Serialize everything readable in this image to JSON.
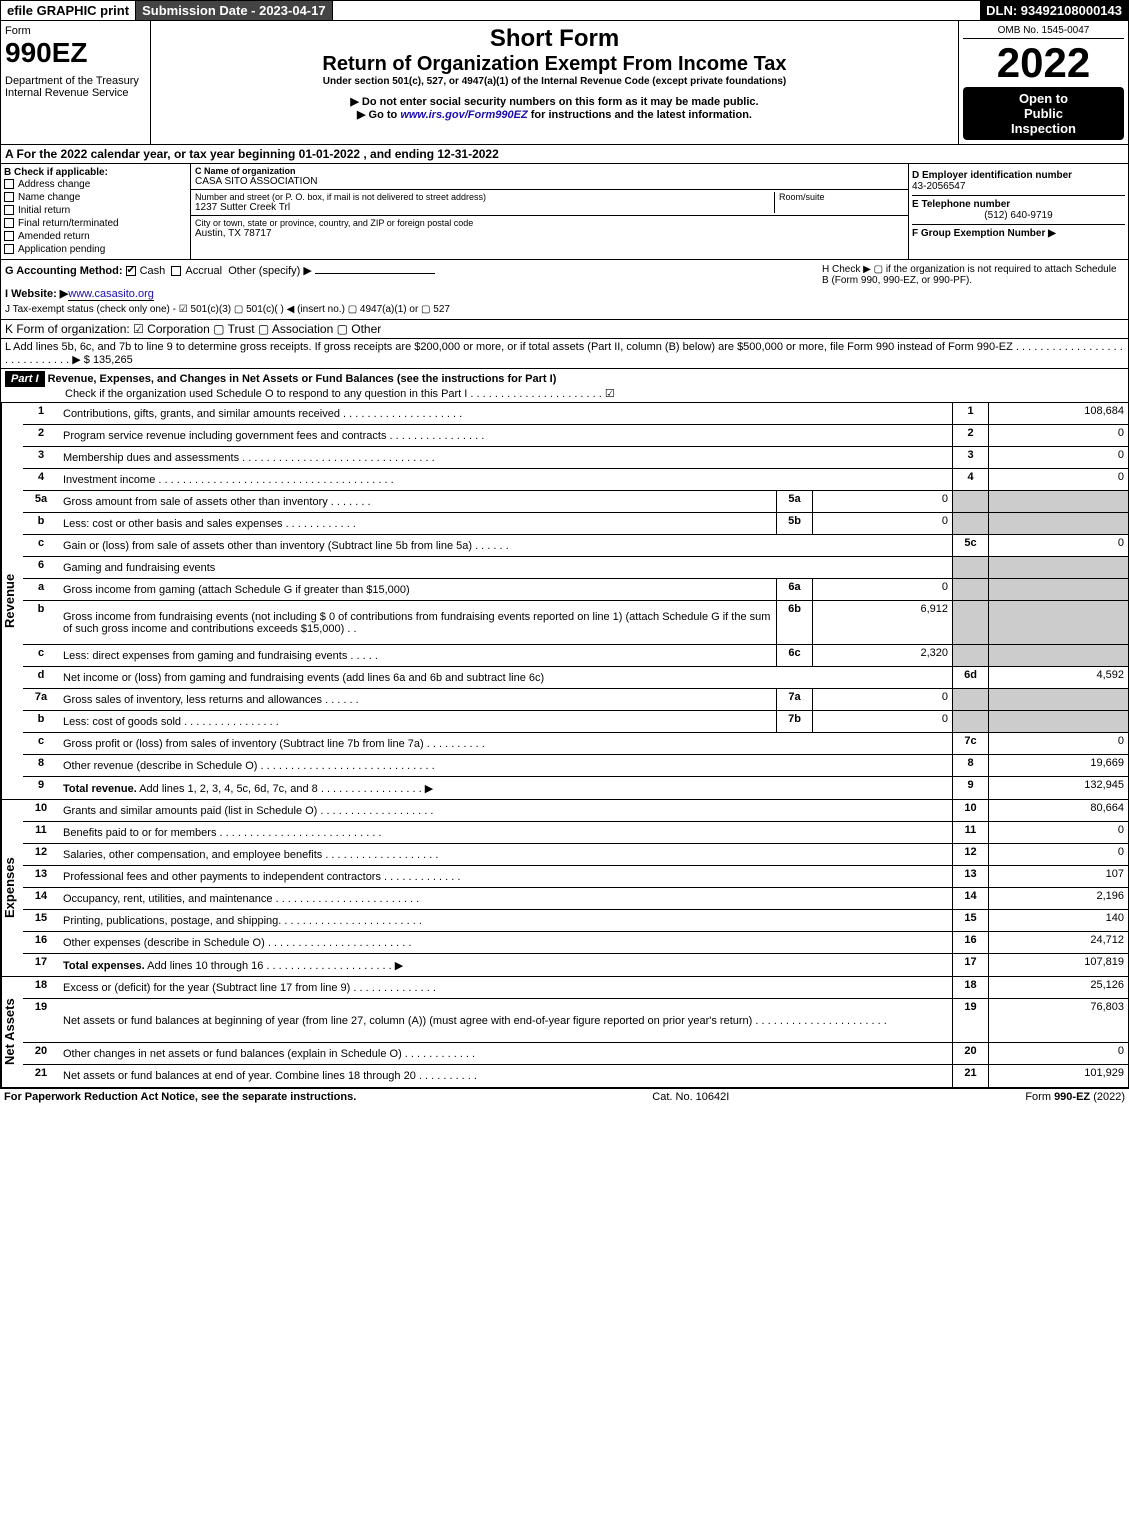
{
  "topbar": {
    "efile": "efile GRAPHIC print",
    "submission": "Submission Date - 2023-04-17",
    "dln": "DLN: 93492108000143"
  },
  "header": {
    "form_label": "Form",
    "form_no": "990EZ",
    "dept": "Department of the Treasury",
    "irs": "Internal Revenue Service",
    "short_form": "Short Form",
    "title": "Return of Organization Exempt From Income Tax",
    "under": "Under section 501(c), 527, or 4947(a)(1) of the Internal Revenue Code (except private foundations)",
    "ssn_note": "▶ Do not enter social security numbers on this form as it may be made public.",
    "goto": "▶ Go to www.irs.gov/Form990EZ for instructions and the latest information.",
    "omb": "OMB No. 1545-0047",
    "year": "2022",
    "open1": "Open to",
    "open2": "Public",
    "open3": "Inspection"
  },
  "sectionA": "A  For the 2022 calendar year, or tax year beginning 01-01-2022 , and ending 12-31-2022",
  "sectionB": {
    "label": "B  Check if applicable:",
    "items": [
      "Address change",
      "Name change",
      "Initial return",
      "Final return/terminated",
      "Amended return",
      "Application pending"
    ]
  },
  "sectionC": {
    "name_lbl": "C Name of organization",
    "name": "CASA SITO ASSOCIATION",
    "addr_lbl": "Number and street (or P. O. box, if mail is not delivered to street address)",
    "addr": "1237 Sutter Creek Trl",
    "room_lbl": "Room/suite",
    "city_lbl": "City or town, state or province, country, and ZIP or foreign postal code",
    "city": "Austin, TX  78717"
  },
  "sectionD": {
    "ein_lbl": "D Employer identification number",
    "ein": "43-2056547",
    "tel_lbl": "E Telephone number",
    "tel": "(512) 640-9719",
    "grp_lbl": "F Group Exemption Number  ▶"
  },
  "sectionG": {
    "label": "G Accounting Method:",
    "cash": "Cash",
    "accrual": "Accrual",
    "other": "Other (specify) ▶"
  },
  "sectionH": "H  Check ▶  ▢  if the organization is not required to attach Schedule B (Form 990, 990-EZ, or 990-PF).",
  "sectionI": {
    "label": "I Website: ▶",
    "url": "www.casasito.org"
  },
  "sectionJ": "J Tax-exempt status (check only one) - ☑ 501(c)(3)  ▢ 501(c)(  ) ◀ (insert no.)  ▢ 4947(a)(1) or  ▢ 527",
  "sectionK": "K Form of organization:  ☑ Corporation  ▢ Trust  ▢ Association  ▢ Other",
  "sectionL": {
    "text": "L Add lines 5b, 6c, and 7b to line 9 to determine gross receipts. If gross receipts are $200,000 or more, or if total assets (Part II, column (B) below) are $500,000 or more, file Form 990 instead of Form 990-EZ  . . . . . . . . . . . . . . . . . . . . . . . . . . . . . ▶",
    "amount": "$ 135,265"
  },
  "part1": {
    "label": "Part I",
    "title": "Revenue, Expenses, and Changes in Net Assets or Fund Balances (see the instructions for Part I)",
    "check_o": "Check if the organization used Schedule O to respond to any question in this Part I . . . . . . . . . . . . . . . . . . . . . . ☑"
  },
  "vert_labels": {
    "revenue": "Revenue",
    "expenses": "Expenses",
    "net": "Net Assets"
  },
  "revenue": [
    {
      "n": "1",
      "desc": "Contributions, gifts, grants, and similar amounts received . . . . . . . . . . . . . . . . . . . .",
      "ref": "1",
      "val": "108,684"
    },
    {
      "n": "2",
      "desc": "Program service revenue including government fees and contracts . . . . . . . . . . . . . . . .",
      "ref": "2",
      "val": "0"
    },
    {
      "n": "3",
      "desc": "Membership dues and assessments . . . . . . . . . . . . . . . . . . . . . . . . . . . . . . . .",
      "ref": "3",
      "val": "0"
    },
    {
      "n": "4",
      "desc": "Investment income . . . . . . . . . . . . . . . . . . . . . . . . . . . . . . . . . . . . . . .",
      "ref": "4",
      "val": "0"
    },
    {
      "n": "5a",
      "desc": "Gross amount from sale of assets other than inventory . . . . . . .",
      "sub": "5a",
      "subval": "0",
      "shade": true
    },
    {
      "n": "b",
      "desc": "Less: cost or other basis and sales expenses . . . . . . . . . . . .",
      "sub": "5b",
      "subval": "0",
      "shade": true
    },
    {
      "n": "c",
      "desc": "Gain or (loss) from sale of assets other than inventory (Subtract line 5b from line 5a) . . . . . .",
      "ref": "5c",
      "val": "0"
    },
    {
      "n": "6",
      "desc": "Gaming and fundraising events",
      "shade": true,
      "noval": true
    },
    {
      "n": "a",
      "desc": "Gross income from gaming (attach Schedule G if greater than $15,000)",
      "sub": "6a",
      "subval": "0",
      "shade": true
    },
    {
      "n": "b",
      "desc": "Gross income from fundraising events (not including $ 0        of contributions from fundraising events reported on line 1) (attach Schedule G if the sum of such gross income and contributions exceeds $15,000)  . .",
      "sub": "6b",
      "subval": "6,912",
      "shade": true,
      "tall": true
    },
    {
      "n": "c",
      "desc": "Less: direct expenses from gaming and fundraising events  . . . . .",
      "sub": "6c",
      "subval": "2,320",
      "shade": true
    },
    {
      "n": "d",
      "desc": "Net income or (loss) from gaming and fundraising events (add lines 6a and 6b and subtract line 6c)",
      "ref": "6d",
      "val": "4,592"
    },
    {
      "n": "7a",
      "desc": "Gross sales of inventory, less returns and allowances . . . . . .",
      "sub": "7a",
      "subval": "0",
      "shade": true
    },
    {
      "n": "b",
      "desc": "Less: cost of goods sold       . . . . . . . . . . . . . . . .",
      "sub": "7b",
      "subval": "0",
      "shade": true
    },
    {
      "n": "c",
      "desc": "Gross profit or (loss) from sales of inventory (Subtract line 7b from line 7a) . . . . . . . . . .",
      "ref": "7c",
      "val": "0"
    },
    {
      "n": "8",
      "desc": "Other revenue (describe in Schedule O) . . . . . . . . . . . . . . . . . . . . . . . . . . . . .",
      "ref": "8",
      "val": "19,669"
    },
    {
      "n": "9",
      "desc": "Total revenue. Add lines 1, 2, 3, 4, 5c, 6d, 7c, and 8  . . . . . . . . . . . . . . . . .  ▶",
      "ref": "9",
      "val": "132,945",
      "bold": true
    }
  ],
  "expenses": [
    {
      "n": "10",
      "desc": "Grants and similar amounts paid (list in Schedule O) . . . . . . . . . . . . . . . . . . .",
      "ref": "10",
      "val": "80,664"
    },
    {
      "n": "11",
      "desc": "Benefits paid to or for members      . . . . . . . . . . . . . . . . . . . . . . . . . . .",
      "ref": "11",
      "val": "0"
    },
    {
      "n": "12",
      "desc": "Salaries, other compensation, and employee benefits . . . . . . . . . . . . . . . . . . .",
      "ref": "12",
      "val": "0"
    },
    {
      "n": "13",
      "desc": "Professional fees and other payments to independent contractors . . . . . . . . . . . . .",
      "ref": "13",
      "val": "107"
    },
    {
      "n": "14",
      "desc": "Occupancy, rent, utilities, and maintenance . . . . . . . . . . . . . . . . . . . . . . . .",
      "ref": "14",
      "val": "2,196"
    },
    {
      "n": "15",
      "desc": "Printing, publications, postage, and shipping. . . . . . . . . . . . . . . . . . . . . . . .",
      "ref": "15",
      "val": "140"
    },
    {
      "n": "16",
      "desc": "Other expenses (describe in Schedule O)    . . . . . . . . . . . . . . . . . . . . . . . .",
      "ref": "16",
      "val": "24,712"
    },
    {
      "n": "17",
      "desc": "Total expenses. Add lines 10 through 16    . . . . . . . . . . . . . . . . . . . . .  ▶",
      "ref": "17",
      "val": "107,819",
      "bold": true
    }
  ],
  "netassets": [
    {
      "n": "18",
      "desc": "Excess or (deficit) for the year (Subtract line 17 from line 9)       . . . . . . . . . . . . . .",
      "ref": "18",
      "val": "25,126"
    },
    {
      "n": "19",
      "desc": "Net assets or fund balances at beginning of year (from line 27, column (A)) (must agree with end-of-year figure reported on prior year's return) . . . . . . . . . . . . . . . . . . . . . .",
      "ref": "19",
      "val": "76,803",
      "tall": true
    },
    {
      "n": "20",
      "desc": "Other changes in net assets or fund balances (explain in Schedule O) . . . . . . . . . . . .",
      "ref": "20",
      "val": "0"
    },
    {
      "n": "21",
      "desc": "Net assets or fund balances at end of year. Combine lines 18 through 20 . . . . . . . . . .",
      "ref": "21",
      "val": "101,929"
    }
  ],
  "footer": {
    "left": "For Paperwork Reduction Act Notice, see the separate instructions.",
    "mid": "Cat. No. 10642I",
    "right": "Form 990-EZ (2022)"
  }
}
